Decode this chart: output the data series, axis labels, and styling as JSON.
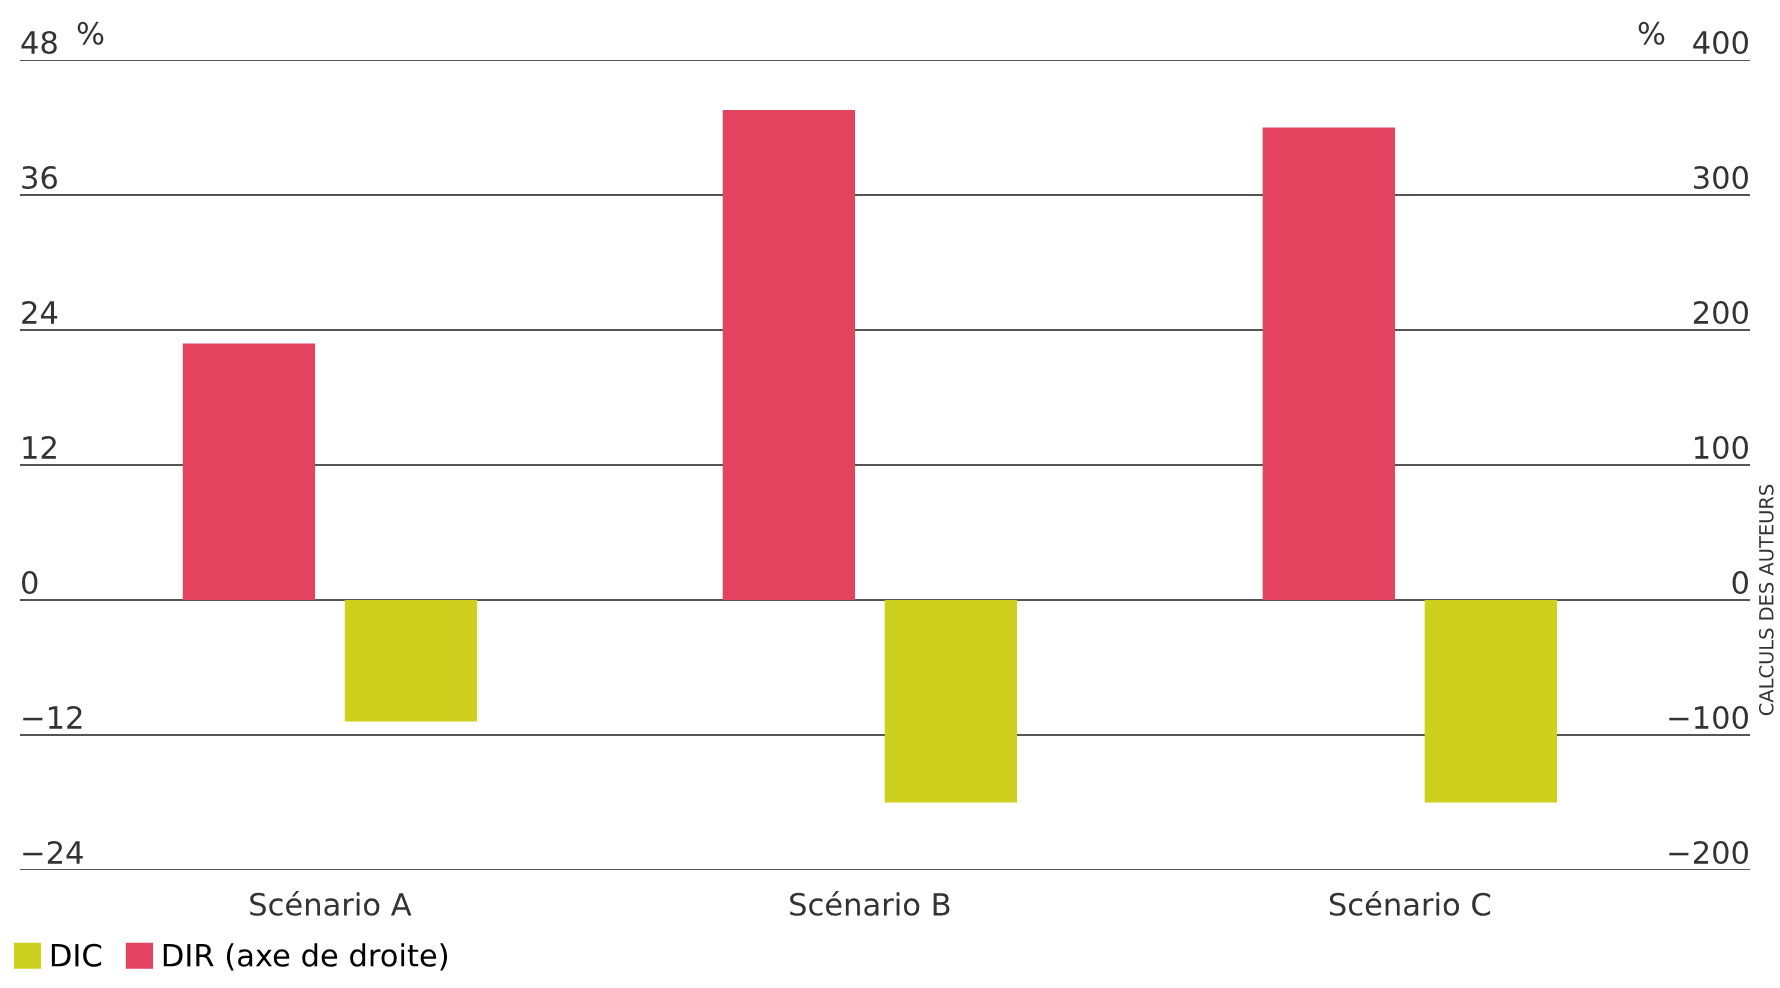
{
  "chart_data": {
    "type": "bar",
    "ylabel": "%",
    "y2label": "%",
    "categories": [
      "Scénario A",
      "Scénario B",
      "Scénario C"
    ],
    "series": [
      {
        "name": "DIR (axe de droite)",
        "color": "#e4435f",
        "values": [
          190,
          363,
          350
        ],
        "axis": "y2"
      },
      {
        "name": "DIC",
        "color": "#cdd11e",
        "values": [
          -10.8,
          -18,
          -18
        ]
      }
    ],
    "ylim": [
      -24,
      48
    ],
    "yticks": [
      {
        "value": -24,
        "label": "−24"
      },
      {
        "value": -12,
        "label": "−12"
      },
      0,
      12,
      24,
      36,
      48
    ],
    "y2lim": [
      -200,
      400
    ],
    "y2ticks": [
      {
        "value": -200,
        "label": "−200"
      },
      {
        "value": -100,
        "label": "−100"
      },
      0,
      100,
      200,
      300,
      400
    ],
    "grid": "y",
    "legend": "bottom left",
    "annotations": [
      "CALCULS DES AUTEURS"
    ]
  }
}
